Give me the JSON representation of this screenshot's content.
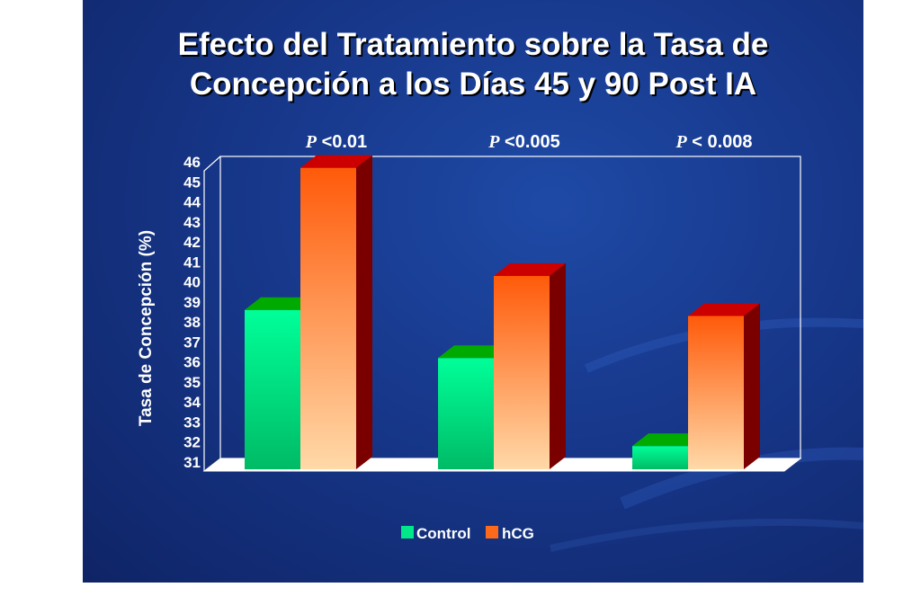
{
  "slide": {
    "title_line1": "Efecto del Tratamiento sobre la Tasa de",
    "title_line2": "Concepción a los Días 45 y 90 Post IA"
  },
  "chart_data": {
    "type": "bar",
    "title": "Efecto del Tratamiento sobre la Tasa de Concepción a los Días 45 y 90 Post IA",
    "ylabel": "Tasa de Concepción (%)",
    "xlabel": "",
    "ylim": [
      31,
      46
    ],
    "yticks": [
      31,
      32,
      33,
      34,
      35,
      36,
      37,
      38,
      39,
      40,
      41,
      42,
      43,
      44,
      45,
      46
    ],
    "categories": [
      "",
      "",
      ""
    ],
    "p_values": [
      {
        "prefix": "P",
        "text": " <0.01"
      },
      {
        "prefix": "P",
        "text": " <0.005"
      },
      {
        "prefix": "P",
        "text": " < 0.008"
      }
    ],
    "series": [
      {
        "name": "Control",
        "values": [
          38.6,
          36.2,
          31.8
        ]
      },
      {
        "name": "hCG",
        "values": [
          45.7,
          40.3,
          38.3
        ]
      }
    ],
    "colors": {
      "control_top": "#00ff99",
      "control_bottom": "#00bb66",
      "control_cap": "#00aa00",
      "hcg_top": "#ff5a0a",
      "hcg_bottom": "#ffd9a8",
      "hcg_cap": "#cc0000",
      "hcg_side": "#7a0000",
      "legend_control": "#00e88a",
      "legend_hcg": "#ff6a1a"
    },
    "legend": "bottom-center",
    "grid": false,
    "chart_style": "3d"
  }
}
